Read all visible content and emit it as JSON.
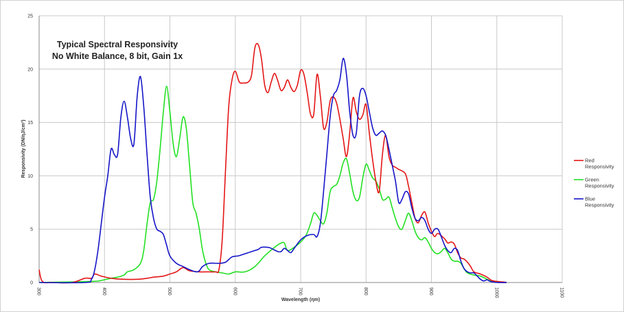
{
  "chart_data": {
    "type": "line",
    "title_lines": [
      "Typical Spectral Responsivity",
      "No White Balance, 8 bit, Gain 1x"
    ],
    "xlabel": "Wavelength (ηm)",
    "ylabel": "Responsivity (DN/ηJ/cm²)",
    "xlim": [
      300,
      1100
    ],
    "ylim": [
      0,
      25
    ],
    "x_ticks": [
      300,
      400,
      500,
      600,
      700,
      800,
      900,
      1000,
      1100
    ],
    "y_ticks": [
      0,
      5,
      10,
      15,
      20,
      25
    ],
    "grid": true,
    "legend_position": "right",
    "series": [
      {
        "name": "Red Responsivity",
        "color": "#e41414",
        "points": [
          [
            300,
            1.2
          ],
          [
            305,
            0.1
          ],
          [
            320,
            0
          ],
          [
            350,
            0
          ],
          [
            370,
            0.4
          ],
          [
            380,
            0.4
          ],
          [
            385,
            0.8
          ],
          [
            395,
            0.6
          ],
          [
            410,
            0.4
          ],
          [
            430,
            0.3
          ],
          [
            450,
            0.3
          ],
          [
            465,
            0.4
          ],
          [
            475,
            0.5
          ],
          [
            490,
            0.6
          ],
          [
            500,
            0.8
          ],
          [
            510,
            1.0
          ],
          [
            520,
            1.4
          ],
          [
            530,
            1.1
          ],
          [
            545,
            1.0
          ],
          [
            560,
            1.0
          ],
          [
            570,
            1.0
          ],
          [
            575,
            1.2
          ],
          [
            580,
            4.0
          ],
          [
            585,
            10.5
          ],
          [
            590,
            16.5
          ],
          [
            595,
            19.0
          ],
          [
            600,
            19.8
          ],
          [
            606,
            18.8
          ],
          [
            612,
            18.7
          ],
          [
            620,
            18.8
          ],
          [
            625,
            19.5
          ],
          [
            630,
            22.0
          ],
          [
            635,
            22.3
          ],
          [
            640,
            21.0
          ],
          [
            645,
            18.5
          ],
          [
            650,
            17.8
          ],
          [
            655,
            18.8
          ],
          [
            660,
            19.6
          ],
          [
            665,
            18.9
          ],
          [
            670,
            18.0
          ],
          [
            675,
            18.3
          ],
          [
            680,
            19.0
          ],
          [
            685,
            18.3
          ],
          [
            690,
            17.9
          ],
          [
            695,
            18.5
          ],
          [
            700,
            19.9
          ],
          [
            705,
            19.5
          ],
          [
            710,
            17.8
          ],
          [
            715,
            15.8
          ],
          [
            720,
            15.8
          ],
          [
            725,
            19.5
          ],
          [
            730,
            17.5
          ],
          [
            735,
            14.5
          ],
          [
            740,
            15.0
          ],
          [
            745,
            17.0
          ],
          [
            750,
            17.4
          ],
          [
            755,
            16.8
          ],
          [
            760,
            15.3
          ],
          [
            765,
            13.5
          ],
          [
            770,
            11.8
          ],
          [
            775,
            14.0
          ],
          [
            780,
            17.3
          ],
          [
            785,
            16.0
          ],
          [
            790,
            15.3
          ],
          [
            795,
            15.7
          ],
          [
            800,
            16.7
          ],
          [
            805,
            14.0
          ],
          [
            810,
            11.5
          ],
          [
            815,
            9.5
          ],
          [
            820,
            8.5
          ],
          [
            825,
            12.0
          ],
          [
            830,
            13.8
          ],
          [
            835,
            11.8
          ],
          [
            840,
            11.0
          ],
          [
            845,
            10.8
          ],
          [
            850,
            10.6
          ],
          [
            860,
            10.2
          ],
          [
            865,
            9.0
          ],
          [
            870,
            7.5
          ],
          [
            875,
            6.0
          ],
          [
            880,
            5.6
          ],
          [
            885,
            6.3
          ],
          [
            890,
            6.6
          ],
          [
            895,
            5.6
          ],
          [
            900,
            4.8
          ],
          [
            905,
            4.3
          ],
          [
            910,
            4.6
          ],
          [
            920,
            4.1
          ],
          [
            925,
            3.7
          ],
          [
            930,
            3.8
          ],
          [
            935,
            3.6
          ],
          [
            940,
            2.8
          ],
          [
            945,
            2.3
          ],
          [
            950,
            2.2
          ],
          [
            955,
            1.9
          ],
          [
            960,
            1.5
          ],
          [
            965,
            1.0
          ],
          [
            975,
            0.8
          ],
          [
            985,
            0.5
          ],
          [
            992,
            0.2
          ],
          [
            1000,
            0.1
          ],
          [
            1010,
            0.05
          ],
          [
            1015,
            0
          ]
        ]
      },
      {
        "name": "Green Responsivity",
        "color": "#22e022",
        "points": [
          [
            300,
            0
          ],
          [
            380,
            0.1
          ],
          [
            395,
            0.2
          ],
          [
            410,
            0.4
          ],
          [
            420,
            0.5
          ],
          [
            430,
            0.7
          ],
          [
            435,
            1.0
          ],
          [
            445,
            1.2
          ],
          [
            455,
            1.8
          ],
          [
            460,
            3.0
          ],
          [
            465,
            5.5
          ],
          [
            470,
            7.5
          ],
          [
            475,
            7.8
          ],
          [
            480,
            9.5
          ],
          [
            485,
            12.5
          ],
          [
            490,
            16.0
          ],
          [
            495,
            18.4
          ],
          [
            500,
            16.0
          ],
          [
            505,
            13.0
          ],
          [
            510,
            11.8
          ],
          [
            515,
            13.5
          ],
          [
            520,
            15.5
          ],
          [
            525,
            14.5
          ],
          [
            530,
            11.0
          ],
          [
            535,
            7.5
          ],
          [
            540,
            6.5
          ],
          [
            545,
            5.0
          ],
          [
            550,
            3.0
          ],
          [
            555,
            1.8
          ],
          [
            560,
            1.2
          ],
          [
            570,
            1.0
          ],
          [
            580,
            0.9
          ],
          [
            590,
            0.8
          ],
          [
            600,
            1.0
          ],
          [
            615,
            1.0
          ],
          [
            630,
            1.5
          ],
          [
            645,
            2.5
          ],
          [
            660,
            3.3
          ],
          [
            670,
            3.7
          ],
          [
            675,
            3.7
          ],
          [
            680,
            3.0
          ],
          [
            690,
            3.3
          ],
          [
            700,
            3.8
          ],
          [
            708,
            4.4
          ],
          [
            715,
            5.5
          ],
          [
            720,
            6.5
          ],
          [
            725,
            6.3
          ],
          [
            730,
            5.8
          ],
          [
            735,
            5.5
          ],
          [
            740,
            6.5
          ],
          [
            745,
            8.5
          ],
          [
            750,
            9.0
          ],
          [
            755,
            9.2
          ],
          [
            760,
            10.0
          ],
          [
            765,
            11.2
          ],
          [
            770,
            11.6
          ],
          [
            775,
            10.2
          ],
          [
            780,
            8.5
          ],
          [
            785,
            7.7
          ],
          [
            790,
            8.0
          ],
          [
            795,
            9.8
          ],
          [
            800,
            11.1
          ],
          [
            805,
            10.5
          ],
          [
            810,
            9.8
          ],
          [
            815,
            9.5
          ],
          [
            820,
            8.8
          ],
          [
            825,
            7.8
          ],
          [
            830,
            7.8
          ],
          [
            835,
            8.0
          ],
          [
            840,
            7.0
          ],
          [
            845,
            6.0
          ],
          [
            850,
            5.2
          ],
          [
            855,
            5.0
          ],
          [
            860,
            5.8
          ],
          [
            865,
            6.5
          ],
          [
            870,
            5.8
          ],
          [
            875,
            4.8
          ],
          [
            880,
            4.2
          ],
          [
            885,
            4.0
          ],
          [
            890,
            4.2
          ],
          [
            895,
            3.8
          ],
          [
            900,
            3.2
          ],
          [
            905,
            2.8
          ],
          [
            910,
            2.7
          ],
          [
            915,
            2.9
          ],
          [
            920,
            3.2
          ],
          [
            925,
            2.8
          ],
          [
            930,
            2.2
          ],
          [
            935,
            2.0
          ],
          [
            940,
            2.0
          ],
          [
            945,
            1.8
          ],
          [
            950,
            1.3
          ],
          [
            955,
            0.9
          ],
          [
            965,
            0.7
          ],
          [
            975,
            0.6
          ],
          [
            985,
            0.3
          ],
          [
            992,
            0.1
          ],
          [
            1000,
            0.05
          ],
          [
            1015,
            0
          ]
        ]
      },
      {
        "name": "Blue Responsivity",
        "color": "#1414c8",
        "points": [
          [
            300,
            0
          ],
          [
            370,
            0
          ],
          [
            380,
            0.3
          ],
          [
            385,
            1.2
          ],
          [
            390,
            3.0
          ],
          [
            395,
            5.5
          ],
          [
            400,
            8.0
          ],
          [
            405,
            10.0
          ],
          [
            410,
            12.5
          ],
          [
            415,
            12.0
          ],
          [
            420,
            12.0
          ],
          [
            425,
            15.5
          ],
          [
            430,
            17.0
          ],
          [
            435,
            15.5
          ],
          [
            440,
            13.5
          ],
          [
            445,
            13.0
          ],
          [
            450,
            17.5
          ],
          [
            455,
            19.3
          ],
          [
            460,
            16.5
          ],
          [
            465,
            12.0
          ],
          [
            470,
            8.0
          ],
          [
            475,
            6.0
          ],
          [
            480,
            5.0
          ],
          [
            485,
            4.8
          ],
          [
            490,
            4.5
          ],
          [
            495,
            3.5
          ],
          [
            500,
            2.5
          ],
          [
            510,
            1.8
          ],
          [
            520,
            1.5
          ],
          [
            530,
            1.2
          ],
          [
            540,
            1.0
          ],
          [
            545,
            1.1
          ],
          [
            550,
            1.5
          ],
          [
            560,
            1.8
          ],
          [
            575,
            1.8
          ],
          [
            585,
            1.9
          ],
          [
            595,
            2.4
          ],
          [
            605,
            2.5
          ],
          [
            615,
            2.7
          ],
          [
            625,
            2.9
          ],
          [
            635,
            3.1
          ],
          [
            640,
            3.3
          ],
          [
            650,
            3.3
          ],
          [
            655,
            3.2
          ],
          [
            665,
            2.9
          ],
          [
            670,
            2.9
          ],
          [
            675,
            3.2
          ],
          [
            680,
            3.0
          ],
          [
            685,
            2.8
          ],
          [
            690,
            3.2
          ],
          [
            700,
            4.0
          ],
          [
            710,
            4.4
          ],
          [
            720,
            4.5
          ],
          [
            725,
            4.3
          ],
          [
            730,
            5.5
          ],
          [
            735,
            8.5
          ],
          [
            740,
            12.0
          ],
          [
            745,
            15.5
          ],
          [
            750,
            17.5
          ],
          [
            755,
            18.0
          ],
          [
            760,
            19.0
          ],
          [
            765,
            21.0
          ],
          [
            770,
            19.5
          ],
          [
            775,
            16.0
          ],
          [
            780,
            13.8
          ],
          [
            785,
            14.0
          ],
          [
            790,
            17.5
          ],
          [
            795,
            18.2
          ],
          [
            800,
            17.5
          ],
          [
            805,
            16.0
          ],
          [
            810,
            14.5
          ],
          [
            815,
            13.8
          ],
          [
            820,
            14.0
          ],
          [
            825,
            14.2
          ],
          [
            830,
            13.8
          ],
          [
            835,
            12.5
          ],
          [
            840,
            11.0
          ],
          [
            845,
            9.5
          ],
          [
            850,
            7.5
          ],
          [
            855,
            7.8
          ],
          [
            860,
            8.5
          ],
          [
            865,
            8.3
          ],
          [
            870,
            7.0
          ],
          [
            875,
            6.0
          ],
          [
            880,
            5.8
          ],
          [
            885,
            6.1
          ],
          [
            890,
            5.8
          ],
          [
            895,
            5.0
          ],
          [
            900,
            4.6
          ],
          [
            905,
            5.0
          ],
          [
            910,
            5.0
          ],
          [
            915,
            4.3
          ],
          [
            920,
            3.5
          ],
          [
            925,
            3.0
          ],
          [
            930,
            2.8
          ],
          [
            935,
            3.2
          ],
          [
            940,
            3.0
          ],
          [
            945,
            2.0
          ],
          [
            950,
            1.3
          ],
          [
            955,
            1.0
          ],
          [
            960,
            0.9
          ],
          [
            965,
            0.9
          ],
          [
            970,
            0.6
          ],
          [
            975,
            0.3
          ],
          [
            980,
            0.15
          ],
          [
            985,
            0.25
          ],
          [
            990,
            0.1
          ],
          [
            995,
            0.05
          ],
          [
            1000,
            0
          ],
          [
            1015,
            0
          ]
        ]
      }
    ]
  }
}
